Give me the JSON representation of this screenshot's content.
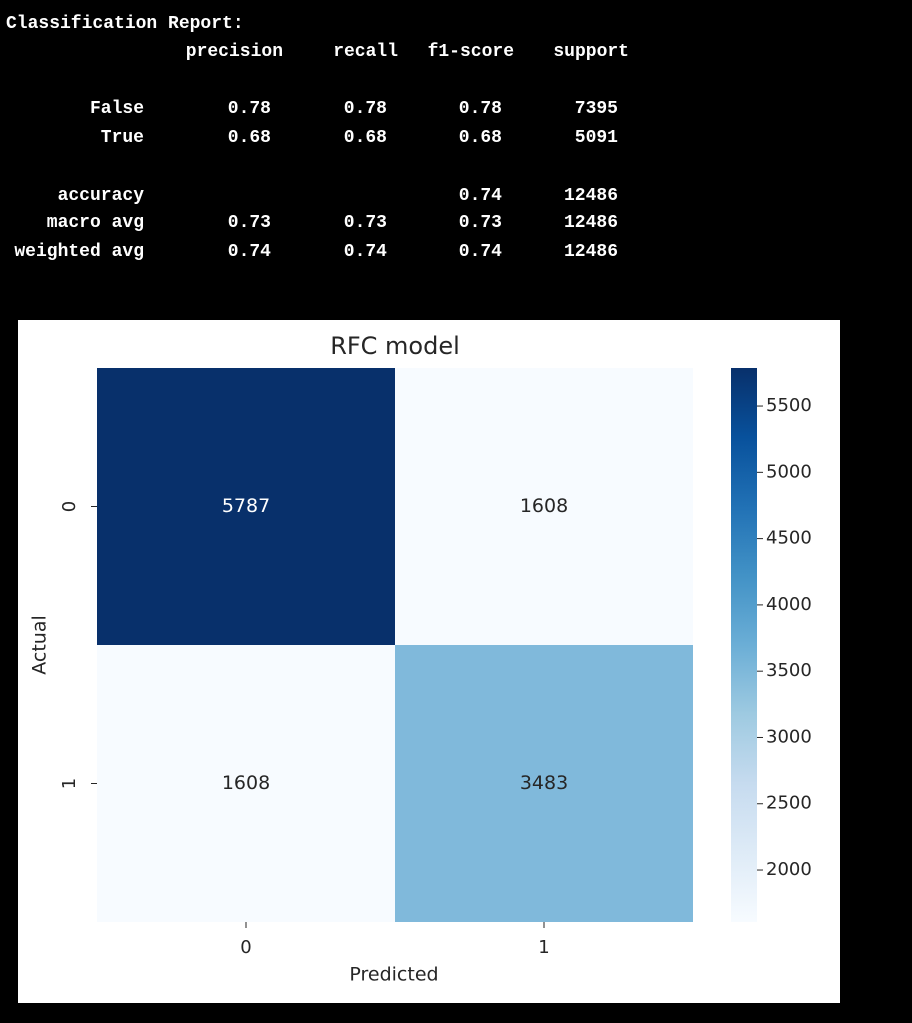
{
  "report": {
    "title": "Classification Report:",
    "columns": [
      "precision",
      "recall",
      "f1-score",
      "support"
    ],
    "rows": [
      {
        "label": "False",
        "values": [
          0.78,
          0.78,
          0.78,
          7395
        ]
      },
      {
        "label": "True",
        "values": [
          0.68,
          0.68,
          0.68,
          5091
        ]
      },
      {
        "label": "accuracy",
        "values": [
          null,
          null,
          0.74,
          12486
        ]
      },
      {
        "label": "macro avg",
        "values": [
          0.73,
          0.73,
          0.73,
          12486
        ]
      },
      {
        "label": "weighted avg",
        "values": [
          0.74,
          0.74,
          0.74,
          12486
        ]
      }
    ]
  },
  "chart_data": {
    "type": "heatmap",
    "title": "RFC model",
    "x_label": "Predicted",
    "y_label": "Actual",
    "x_categories": [
      "0",
      "1"
    ],
    "y_categories": [
      "0",
      "1"
    ],
    "values": [
      [
        5787,
        1608
      ],
      [
        1608,
        3483
      ]
    ],
    "colormap": "Blues",
    "clim": [
      1608,
      5787
    ],
    "cticks": [
      2000,
      2500,
      3000,
      3500,
      4000,
      4500,
      5000,
      5500
    ]
  }
}
